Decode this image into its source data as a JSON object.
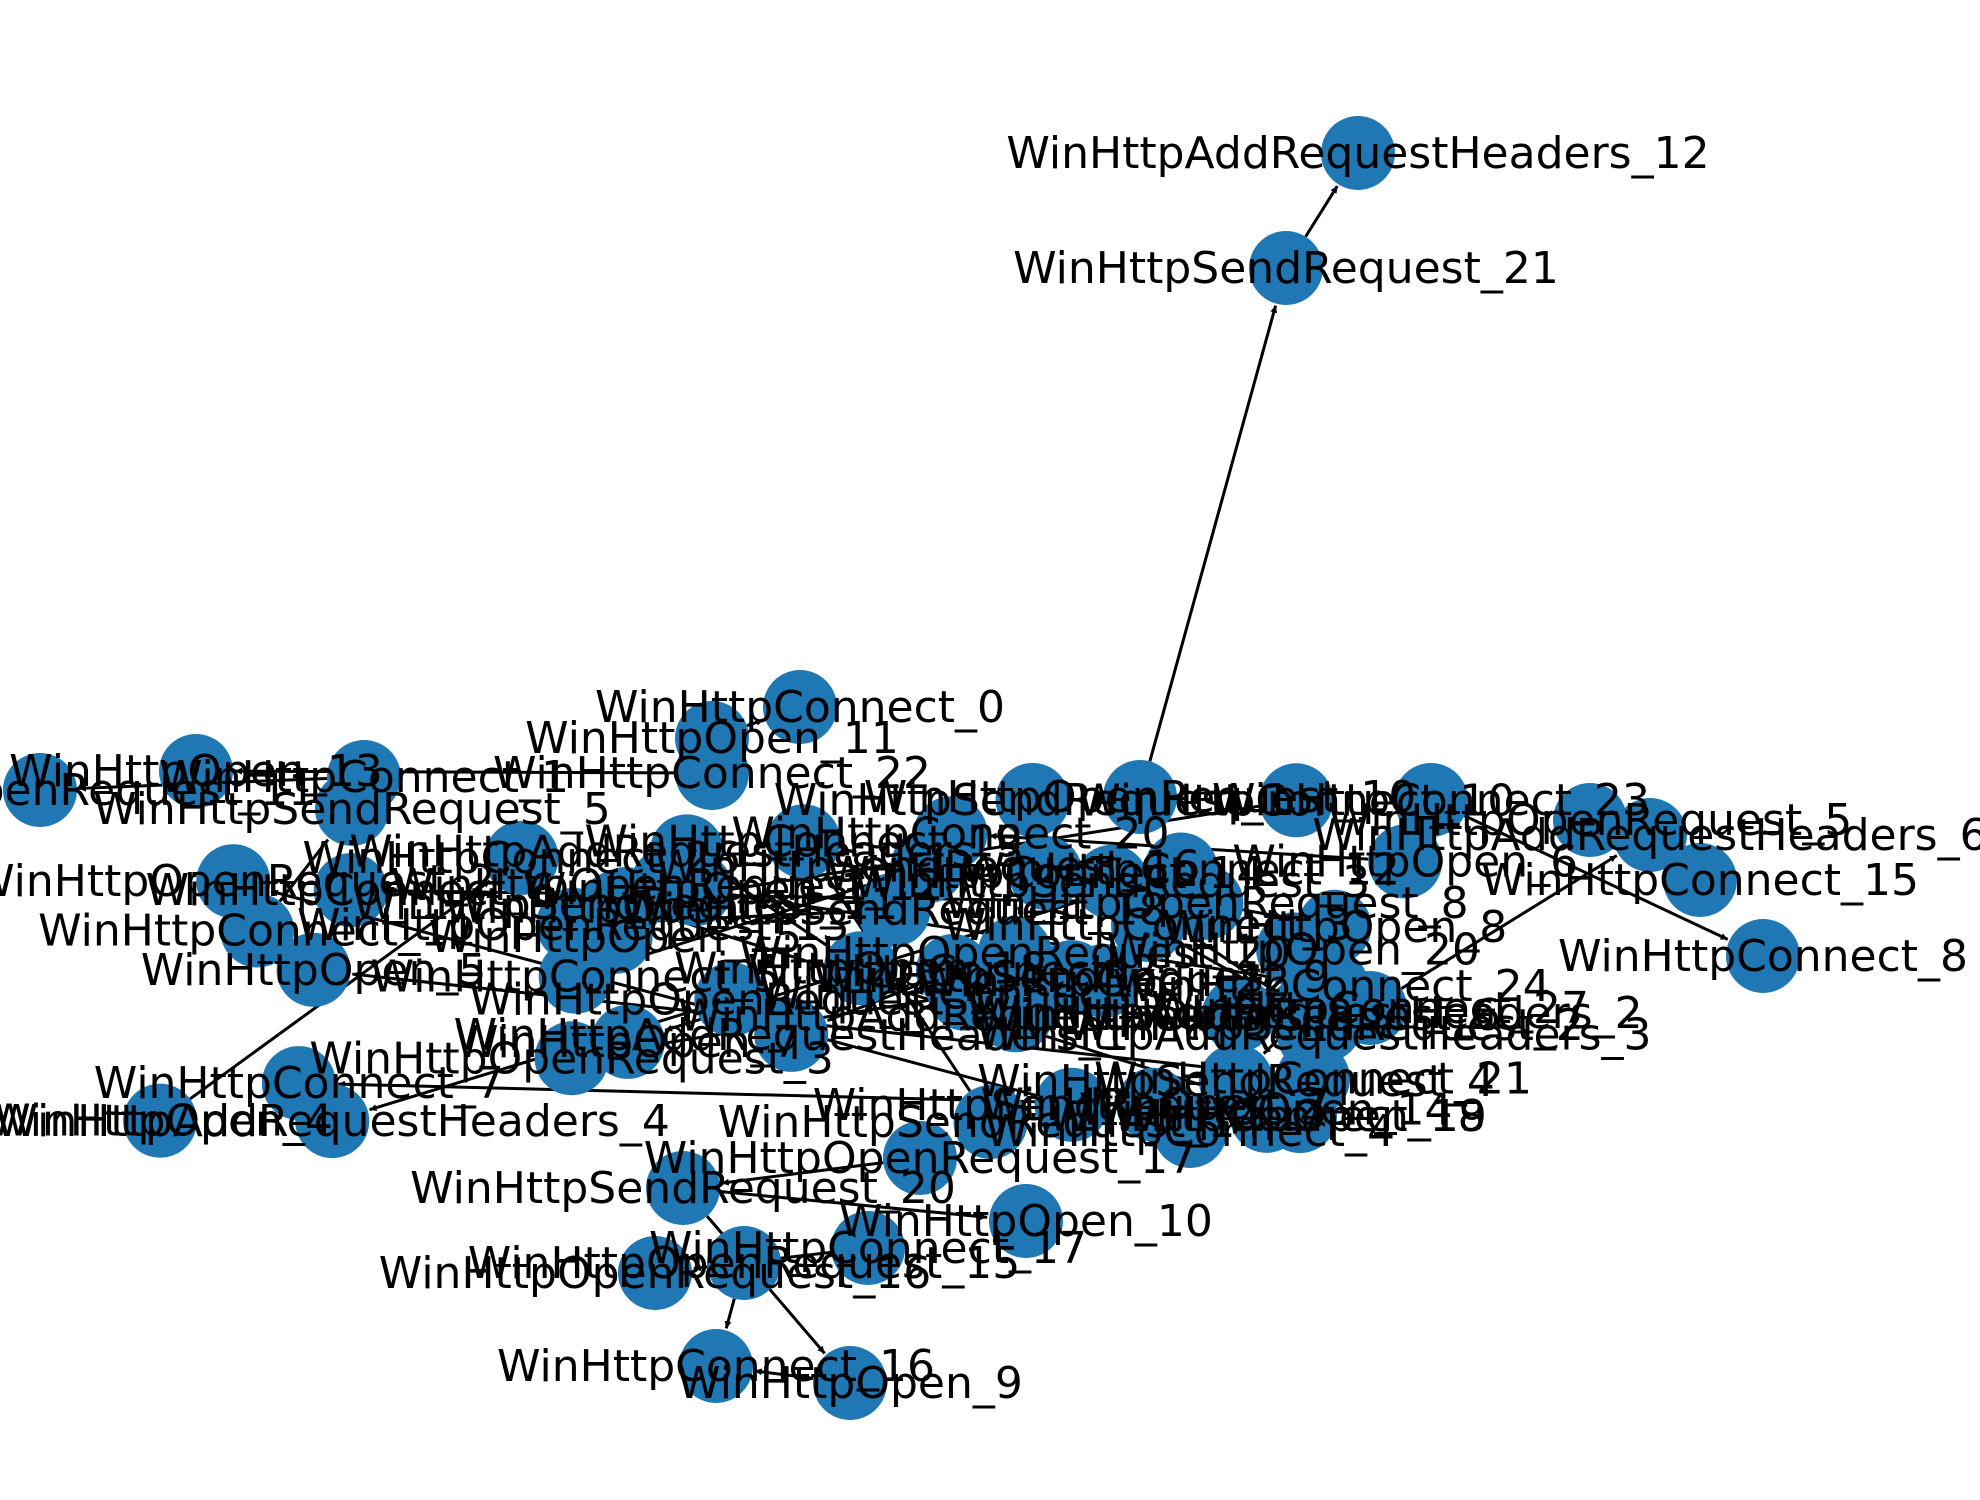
{
  "node_color": "#1f77b4",
  "edge_color": "#000000",
  "nodes": [
    {
      "id": "n0",
      "label": "WinHttpAddRequestHeaders_12"
    },
    {
      "id": "n1",
      "label": "WinHttpSendRequest_21"
    },
    {
      "id": "n2",
      "label": "WinHttpConnect_0"
    },
    {
      "id": "n3",
      "label": "WinHttpOpen_11"
    },
    {
      "id": "n4",
      "label": "WinHttpConnect_22"
    },
    {
      "id": "n5",
      "label": "WinHttpOpen_13"
    },
    {
      "id": "n6",
      "label": "WinHttpConnect_1"
    },
    {
      "id": "n7",
      "label": "WinHttpOpenRequest_11"
    },
    {
      "id": "n8",
      "label": "WinHttpConnect_23"
    },
    {
      "id": "n9",
      "label": "WinHttpConnect_8"
    },
    {
      "id": "n10",
      "label": "WinHttpConnect_3"
    },
    {
      "id": "n11",
      "label": "WinHttpAddRequestHeaders_2"
    },
    {
      "id": "n12",
      "label": "WinHttpSendRequest_4"
    },
    {
      "id": "n13",
      "label": "WinHttpConnect_4"
    },
    {
      "id": "n14",
      "label": "WinHttpOpenRequest_17"
    },
    {
      "id": "n15",
      "label": "WinHttpSendRequest_20"
    },
    {
      "id": "n16",
      "label": "WinHttpOpen_10"
    },
    {
      "id": "n17",
      "label": "WinHttpConnect_17"
    },
    {
      "id": "n18",
      "label": "WinHttpOpenRequest_16"
    },
    {
      "id": "n19",
      "label": "WinHttpOpenRequest_15"
    },
    {
      "id": "n20",
      "label": "WinHttpConnect_16"
    },
    {
      "id": "n21",
      "label": "WinHttpOpen_9"
    },
    {
      "id": "n22",
      "label": "WinHttpSendRequest_2"
    },
    {
      "id": "n23",
      "label": "WinHttpOpenRequest_10"
    },
    {
      "id": "n24",
      "label": "WinHttpConnect_27"
    },
    {
      "id": "n25",
      "label": "WinHttpAddRequestHeaders_6"
    },
    {
      "id": "n26",
      "label": "WinHttpOpenRequest_5"
    },
    {
      "id": "n27",
      "label": "WinHttpConnect_15"
    },
    {
      "id": "n28",
      "label": "WinHttpOpen_4"
    },
    {
      "id": "n29",
      "label": "WinHttpConnect_26"
    },
    {
      "id": "n30",
      "label": "WinHttpSendRequest_9"
    },
    {
      "id": "n31",
      "label": "WinHttpOpenRequest_3"
    },
    {
      "id": "n32",
      "label": "WinHttpOpen_22"
    },
    {
      "id": "n33",
      "label": "WinHttpAddRequestHeaders_8"
    },
    {
      "id": "n34",
      "label": "WinHttpConnect_12"
    },
    {
      "id": "n35",
      "label": "WinHttpOpen_7"
    },
    {
      "id": "n36",
      "label": "WinHttpSendRequest_1"
    },
    {
      "id": "n37",
      "label": "WinHttpOpenRequest_20"
    },
    {
      "id": "n38",
      "label": "WinHttpConnect_21"
    },
    {
      "id": "n39",
      "label": "WinHttpOpen_5"
    },
    {
      "id": "n40",
      "label": "WinHttpAddRequestHeaders_3"
    },
    {
      "id": "n41",
      "label": "WinHttpConnect_9"
    },
    {
      "id": "n42",
      "label": "WinHttpOpen_19"
    },
    {
      "id": "n43",
      "label": "WinHttpSendRequest_11"
    },
    {
      "id": "n44",
      "label": "WinHttpOpenRequest_8"
    },
    {
      "id": "n45",
      "label": "WinHttpConnect_6"
    },
    {
      "id": "n46",
      "label": "WinHttpOpen_1"
    },
    {
      "id": "n47",
      "label": "WinHttpConnect_24"
    },
    {
      "id": "n48",
      "label": "WinHttpSendRequest_7"
    },
    {
      "id": "n49",
      "label": "WinHttpOpenRequest_2"
    },
    {
      "id": "n50",
      "label": "WinHttpOpen_18"
    },
    {
      "id": "n51",
      "label": "WinHttpAddRequestHeaders_5"
    },
    {
      "id": "n52",
      "label": "WinHttpConnect_10"
    },
    {
      "id": "n53",
      "label": "WinHttpOpen_3"
    },
    {
      "id": "n54",
      "label": "WinHttpSendRequest_14"
    },
    {
      "id": "n55",
      "label": "WinHttpConnect_19"
    },
    {
      "id": "n56",
      "label": "WinHttpOpenRequest_12"
    },
    {
      "id": "n57",
      "label": "WinHttpOpen_15"
    },
    {
      "id": "n58",
      "label": "WinHttpConnect_5"
    },
    {
      "id": "n59",
      "label": "WinHttpSendRequest_16"
    },
    {
      "id": "n60",
      "label": "WinHttpOpen_20"
    },
    {
      "id": "n61",
      "label": "WinHttpOpenRequest_6"
    },
    {
      "id": "n62",
      "label": "WinHttpConnect_2"
    },
    {
      "id": "n63",
      "label": "WinHttpAddRequestHeaders_1"
    },
    {
      "id": "n64",
      "label": "WinHttpOpen_8"
    },
    {
      "id": "n65",
      "label": "WinHttpConnect_14"
    },
    {
      "id": "n66",
      "label": "WinHttpSendRequest_18"
    },
    {
      "id": "n67",
      "label": "WinHttpOpenRequest_13"
    },
    {
      "id": "n68",
      "label": "WinHttpOpen_2"
    },
    {
      "id": "n69",
      "label": "WinHttpConnect_7"
    },
    {
      "id": "n70",
      "label": "WinHttpConnect_11"
    },
    {
      "id": "n71",
      "label": "WinHttpSendRequest_5"
    },
    {
      "id": "n72",
      "label": "WinHttpOpen_6"
    },
    {
      "id": "n73",
      "label": "WinHttpConnect_20"
    },
    {
      "id": "n74",
      "label": "WinHttpOpenRequest_1"
    },
    {
      "id": "n75",
      "label": "WinHttpAddRequestHeaders_4"
    },
    {
      "id": "n76",
      "label": "WinHttpOpen_14"
    },
    {
      "id": "n77",
      "label": "WinHttpConnect_18"
    },
    {
      "id": "n78",
      "label": "WinHttpSendRequest_3"
    }
  ],
  "edges": [
    {
      "from": "n1",
      "to": "n0"
    },
    {
      "from": "n23",
      "to": "n1"
    },
    {
      "from": "n3",
      "to": "n2"
    },
    {
      "from": "n14",
      "to": "n15"
    },
    {
      "from": "n15",
      "to": "n16"
    },
    {
      "from": "n17",
      "to": "n18"
    },
    {
      "from": "n21",
      "to": "n20"
    },
    {
      "from": "n15",
      "to": "n21"
    },
    {
      "from": "n6",
      "to": "n7"
    },
    {
      "from": "n8",
      "to": "n9"
    },
    {
      "from": "n12",
      "to": "n13"
    },
    {
      "from": "n11",
      "to": "n12"
    },
    {
      "from": "n24",
      "to": "n25"
    },
    {
      "from": "n26",
      "to": "n27"
    },
    {
      "from": "n28",
      "to": "n29"
    },
    {
      "from": "n30",
      "to": "n31"
    },
    {
      "from": "n32",
      "to": "n33"
    },
    {
      "from": "n34",
      "to": "n35"
    },
    {
      "from": "n36",
      "to": "n37"
    },
    {
      "from": "n38",
      "to": "n39"
    },
    {
      "from": "n40",
      "to": "n41"
    },
    {
      "from": "n42",
      "to": "n43"
    },
    {
      "from": "n44",
      "to": "n45"
    },
    {
      "from": "n46",
      "to": "n47"
    },
    {
      "from": "n48",
      "to": "n49"
    },
    {
      "from": "n50",
      "to": "n51"
    },
    {
      "from": "n52",
      "to": "n53"
    },
    {
      "from": "n54",
      "to": "n55"
    },
    {
      "from": "n56",
      "to": "n57"
    },
    {
      "from": "n58",
      "to": "n59"
    },
    {
      "from": "n60",
      "to": "n61"
    },
    {
      "from": "n62",
      "to": "n63"
    },
    {
      "from": "n64",
      "to": "n65"
    },
    {
      "from": "n66",
      "to": "n67"
    },
    {
      "from": "n68",
      "to": "n69"
    },
    {
      "from": "n70",
      "to": "n71"
    },
    {
      "from": "n72",
      "to": "n73"
    },
    {
      "from": "n74",
      "to": "n75"
    },
    {
      "from": "n76",
      "to": "n77"
    },
    {
      "from": "n78",
      "to": "n22"
    },
    {
      "from": "n4",
      "to": "n5"
    },
    {
      "from": "n10",
      "to": "n11"
    },
    {
      "from": "n19",
      "to": "n20"
    }
  ]
}
